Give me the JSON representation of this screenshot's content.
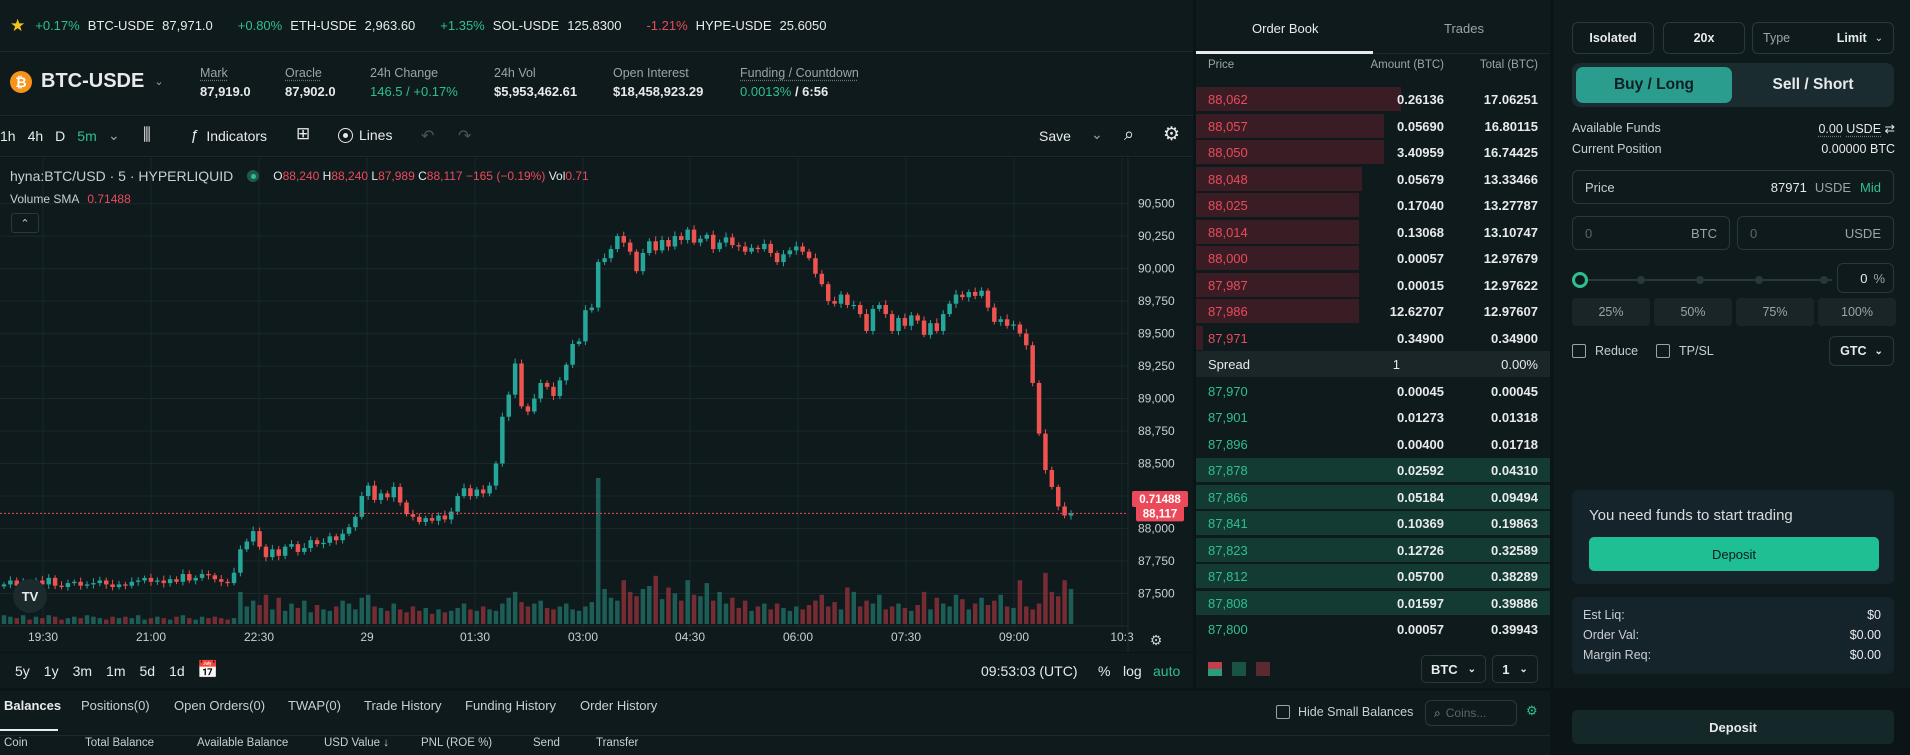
{
  "ticker": [
    {
      "change": "+0.17%",
      "symbol": "BTC-USDE",
      "price": "87,971.0",
      "dir": "up"
    },
    {
      "change": "+0.80%",
      "symbol": "ETH-USDE",
      "price": "2,963.60",
      "dir": "up"
    },
    {
      "change": "+1.35%",
      "symbol": "SOL-USDE",
      "price": "125.8300",
      "dir": "up"
    },
    {
      "change": "-1.21%",
      "symbol": "HYPE-USDE",
      "price": "25.6050",
      "dir": "down"
    }
  ],
  "market": {
    "symbol": "BTC-USDE",
    "mark_label": "Mark",
    "mark": "87,919.0",
    "oracle_label": "Oracle",
    "oracle": "87,902.0",
    "change_label": "24h Change",
    "change": "146.5 / +0.17%",
    "vol_label": "24h Vol",
    "vol": "$5,953,462.61",
    "oi_label": "Open Interest",
    "oi": "$18,458,923.29",
    "funding_label": "Funding / Countdown",
    "funding_rate": "0.0013%",
    "funding_countdown": "/ 6:56"
  },
  "toolbar": {
    "intervals": [
      "1h",
      "4h",
      "D",
      "5m"
    ],
    "indicators": "Indicators",
    "lines": "Lines",
    "save": "Save"
  },
  "chart_legend": {
    "source": "hyna:BTC/USD · 5 · HYPERLIQUID",
    "o_label": "O",
    "o": "88,240",
    "h_label": "H",
    "h": "88,240",
    "l_label": "L",
    "l": "87,989",
    "c_label": "C",
    "c": "88,117",
    "chg": "−165 (−0.19%)",
    "vol_label": "Vol",
    "vol": "0.71",
    "sma_label": "Volume SMA",
    "sma": "0.71488",
    "last_price_tag": "88,117",
    "vol_tag": "0.71488"
  },
  "chart_data": {
    "type": "candlestick",
    "y_ticks": [
      "90,500",
      "90,250",
      "90,000",
      "89,750",
      "89,500",
      "89,250",
      "89,000",
      "88,750",
      "88,500",
      "88,250",
      "88,000",
      "87,750",
      "87,500"
    ],
    "x_ticks": [
      "19:30",
      "21:00",
      "22:30",
      "29",
      "01:30",
      "03:00",
      "04:30",
      "06:00",
      "07:30",
      "09:00",
      "10:3"
    ],
    "ylim": [
      87350,
      90620
    ],
    "closes": [
      87570,
      87600,
      87560,
      87580,
      87540,
      87600,
      87570,
      87620,
      87560,
      87550,
      87580,
      87590,
      87560,
      87570,
      87580,
      87600,
      87570,
      87550,
      87570,
      87560,
      87590,
      87600,
      87620,
      87590,
      87600,
      87580,
      87610,
      87590,
      87650,
      87600,
      87620,
      87650,
      87640,
      87610,
      87590,
      87580,
      87660,
      87840,
      87900,
      87980,
      87860,
      87780,
      87840,
      87790,
      87860,
      87880,
      87820,
      87850,
      87910,
      87880,
      87890,
      87940,
      87910,
      87960,
      88010,
      88090,
      88250,
      88330,
      88220,
      88270,
      88240,
      88320,
      88200,
      88110,
      88090,
      88050,
      88080,
      88060,
      88100,
      88070,
      88130,
      88250,
      88310,
      88250,
      88300,
      88270,
      88330,
      88500,
      88860,
      89030,
      89270,
      88940,
      88900,
      89000,
      89120,
      89090,
      89020,
      89140,
      89260,
      89420,
      89440,
      89680,
      89700,
      90050,
      90080,
      90150,
      90250,
      90200,
      90130,
      89980,
      90120,
      90210,
      90140,
      90220,
      90170,
      90250,
      90220,
      90300,
      90200,
      90230,
      90260,
      90150,
      90200,
      90240,
      90180,
      90170,
      90130,
      90160,
      90150,
      90190,
      90120,
      90050,
      90110,
      90140,
      90170,
      90130,
      90080,
      89960,
      89880,
      89750,
      89730,
      89800,
      89720,
      89720,
      89650,
      89520,
      89690,
      89720,
      89650,
      89520,
      89620,
      89560,
      89640,
      89600,
      89490,
      89580,
      89520,
      89650,
      89730,
      89800,
      89780,
      89820,
      89790,
      89830,
      89700,
      89590,
      89610,
      89560,
      89570,
      89500,
      89410,
      89120,
      88730,
      88450,
      88320,
      88170,
      88100,
      88117
    ],
    "volumes": [
      0.06,
      0.05,
      0.04,
      0.06,
      0.03,
      0.05,
      0.04,
      0.06,
      0.05,
      0.03,
      0.04,
      0.05,
      0.04,
      0.06,
      0.05,
      0.04,
      0.03,
      0.05,
      0.04,
      0.05,
      0.04,
      0.06,
      0.03,
      0.04,
      0.05,
      0.04,
      0.03,
      0.05,
      0.06,
      0.04,
      0.03,
      0.05,
      0.04,
      0.05,
      0.04,
      0.03,
      0.04,
      0.22,
      0.12,
      0.16,
      0.13,
      0.2,
      0.1,
      0.18,
      0.09,
      0.14,
      0.11,
      0.16,
      0.08,
      0.13,
      0.1,
      0.09,
      0.12,
      0.16,
      0.14,
      0.1,
      0.18,
      0.2,
      0.12,
      0.11,
      0.09,
      0.14,
      0.1,
      0.08,
      0.12,
      0.09,
      0.11,
      0.07,
      0.1,
      0.08,
      0.09,
      0.11,
      0.14,
      0.1,
      0.09,
      0.12,
      0.1,
      0.09,
      0.14,
      0.18,
      0.22,
      0.15,
      0.12,
      0.14,
      0.16,
      0.11,
      0.1,
      0.12,
      0.14,
      0.1,
      0.09,
      0.12,
      0.15,
      1.0,
      0.24,
      0.18,
      0.16,
      0.3,
      0.22,
      0.19,
      0.24,
      0.26,
      0.33,
      0.17,
      0.25,
      0.21,
      0.16,
      0.3,
      0.2,
      0.19,
      0.28,
      0.16,
      0.22,
      0.14,
      0.18,
      0.11,
      0.16,
      0.09,
      0.12,
      0.14,
      0.1,
      0.14,
      0.11,
      0.09,
      0.12,
      0.1,
      0.13,
      0.16,
      0.2,
      0.12,
      0.15,
      0.1,
      0.25,
      0.22,
      0.12,
      0.16,
      0.14,
      0.2,
      0.1,
      0.12,
      0.14,
      0.11,
      0.09,
      0.13,
      0.22,
      0.1,
      0.18,
      0.14,
      0.12,
      0.2,
      0.17,
      0.1,
      0.14,
      0.18,
      0.13,
      0.16,
      0.2,
      0.12,
      0.11,
      0.3,
      0.12,
      0.1,
      0.14,
      0.35,
      0.22,
      0.19,
      0.3,
      0.24,
      0.2,
      0.18
    ]
  },
  "chart_bottom": {
    "ranges": [
      "5y",
      "1y",
      "3m",
      "1m",
      "5d",
      "1d"
    ],
    "clock": "09:53:03 (UTC)",
    "pct": "%",
    "log": "log",
    "auto": "auto"
  },
  "orderbook": {
    "tab_book": "Order Book",
    "tab_trades": "Trades",
    "col_price": "Price",
    "col_amount": "Amount (BTC)",
    "col_total": "Total (BTC)",
    "asks": [
      {
        "price": "88,062",
        "amount": "0.26136",
        "total": "17.06251",
        "depth": 0.58
      },
      {
        "price": "88,057",
        "amount": "0.05690",
        "total": "16.80115",
        "depth": 0.53
      },
      {
        "price": "88,050",
        "amount": "3.40959",
        "total": "16.74425",
        "depth": 0.53
      },
      {
        "price": "88,048",
        "amount": "0.05679",
        "total": "13.33466",
        "depth": 0.47
      },
      {
        "price": "88,025",
        "amount": "0.17040",
        "total": "13.27787",
        "depth": 0.46
      },
      {
        "price": "88,014",
        "amount": "0.13068",
        "total": "13.10747",
        "depth": 0.46
      },
      {
        "price": "88,000",
        "amount": "0.00057",
        "total": "12.97679",
        "depth": 0.46
      },
      {
        "price": "87,987",
        "amount": "0.00015",
        "total": "12.97622",
        "depth": 0.46
      },
      {
        "price": "87,986",
        "amount": "12.62707",
        "total": "12.97607",
        "depth": 0.46
      },
      {
        "price": "87,971",
        "amount": "0.34900",
        "total": "0.34900",
        "depth": 0.02
      }
    ],
    "spread_label": "Spread",
    "spread_value": "1",
    "spread_pct": "0.00%",
    "bids": [
      {
        "price": "87,970",
        "amount": "0.00045",
        "total": "0.00045",
        "depth": 0.0
      },
      {
        "price": "87,901",
        "amount": "0.01273",
        "total": "0.01318",
        "depth": 0.0
      },
      {
        "price": "87,896",
        "amount": "0.00400",
        "total": "0.01718",
        "depth": 0.0
      },
      {
        "price": "87,878",
        "amount": "0.02592",
        "total": "0.04310",
        "depth": 1.0
      },
      {
        "price": "87,866",
        "amount": "0.05184",
        "total": "0.09494",
        "depth": 1.0
      },
      {
        "price": "87,841",
        "amount": "0.10369",
        "total": "0.19863",
        "depth": 1.0
      },
      {
        "price": "87,823",
        "amount": "0.12726",
        "total": "0.32589",
        "depth": 1.0
      },
      {
        "price": "87,812",
        "amount": "0.05700",
        "total": "0.38289",
        "depth": 1.0
      },
      {
        "price": "87,808",
        "amount": "0.01597",
        "total": "0.39886",
        "depth": 1.0
      },
      {
        "price": "87,800",
        "amount": "0.00057",
        "total": "0.39943",
        "depth": 0.0
      }
    ],
    "unit_select": "BTC",
    "group_select": "1"
  },
  "trade": {
    "margin_mode": "Isolated",
    "leverage": "20x",
    "type_label": "Type",
    "type_value": "Limit",
    "buy": "Buy / Long",
    "sell": "Sell / Short",
    "avail_label": "Available Funds",
    "avail_value": "0.00",
    "avail_unit": "USDE",
    "pos_label": "Current Position",
    "pos_value": "0.00000 BTC",
    "price_label": "Price",
    "price_value": "87971",
    "price_unit": "USDE",
    "price_mid": "Mid",
    "size_btc_ph": "0",
    "size_btc_unit": "BTC",
    "size_usde_ph": "0",
    "size_usde_unit": "USDE",
    "slider_value": "0",
    "slider_pct": "%",
    "quick": [
      "25%",
      "50%",
      "75%",
      "100%"
    ],
    "reduce": "Reduce",
    "tpsl": "TP/SL",
    "tif": "GTC",
    "funds_msg": "You need funds to start trading",
    "deposit": "Deposit",
    "liq_label": "Est Liq:",
    "liq": "$0",
    "oval_label": "Order Val:",
    "oval": "$0.00",
    "margin_label": "Margin Req:",
    "margin": "$0.00",
    "deposit_bottom": "Deposit"
  },
  "bottom_tabs": {
    "tabs": [
      "Balances",
      "Positions(0)",
      "Open Orders(0)",
      "TWAP(0)",
      "Trade History",
      "Funding History",
      "Order History"
    ],
    "hide_small": "Hide Small Balances",
    "coins_ph": "Coins...",
    "cols": [
      "Coin",
      "Total Balance",
      "Available Balance",
      "USD Value ↓",
      "PNL (ROE %)",
      "Send",
      "Transfer"
    ]
  },
  "colors": {
    "green": "#2fbf8f",
    "red": "#ec4a5a",
    "accent": "#1fbf94"
  }
}
